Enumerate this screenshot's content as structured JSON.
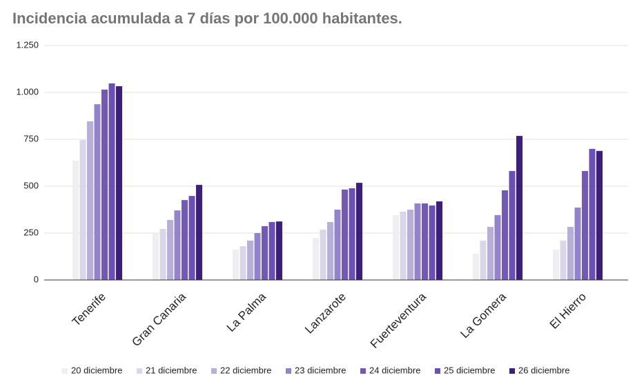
{
  "chart_data": {
    "type": "bar",
    "title": "Incidencia acumulada a 7 días por 100.000 habitantes.",
    "categories": [
      "Tenerife",
      "Gran Canaria",
      "La Palma",
      "Lanzarote",
      "Fuerteventura",
      "La Gomera",
      "El Hierro"
    ],
    "series": [
      {
        "name": "20 diciembre",
        "color": "#efeff3",
        "values": [
          636,
          250,
          162,
          224,
          346,
          140,
          162
        ]
      },
      {
        "name": "21 diciembre",
        "color": "#dad6ea",
        "values": [
          746,
          272,
          180,
          268,
          364,
          210,
          210
        ]
      },
      {
        "name": "22 diciembre",
        "color": "#b8afd9",
        "values": [
          846,
          320,
          210,
          309,
          375,
          283,
          283
        ]
      },
      {
        "name": "23 diciembre",
        "color": "#9483cc",
        "values": [
          937,
          371,
          250,
          375,
          408,
          346,
          386
        ]
      },
      {
        "name": "24 diciembre",
        "color": "#7259b8",
        "values": [
          1015,
          426,
          287,
          482,
          408,
          478,
          581
        ]
      },
      {
        "name": "25 diciembre",
        "color": "#6a4fb8",
        "values": [
          1048,
          448,
          309,
          489,
          397,
          581,
          699
        ]
      },
      {
        "name": "26 diciembre",
        "color": "#3b1f7a",
        "values": [
          1033,
          507,
          312,
          518,
          419,
          768,
          688
        ]
      }
    ],
    "ylim": [
      0,
      1250
    ],
    "yticks": [
      0,
      250,
      500,
      750,
      {
        "value": 1000,
        "label": "1.000"
      },
      {
        "value": 1250,
        "label": "1.250"
      }
    ],
    "grid": true,
    "legend": "bottom"
  }
}
